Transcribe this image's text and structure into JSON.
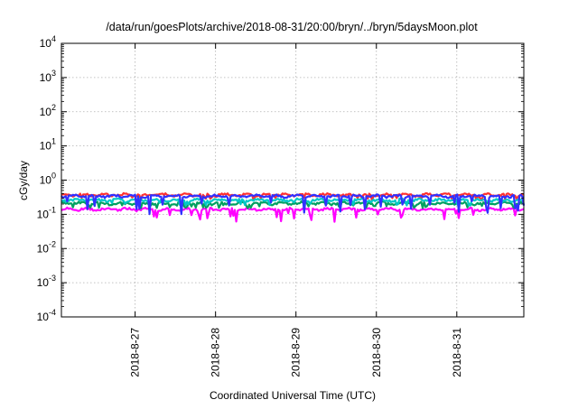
{
  "chart_data": {
    "type": "line",
    "title": "/data/run/goesPlots/archive/2018-08-31/20:00/bryn/../bryn/5daysMoon.plot",
    "xlabel": "Coordinated Universal Time (UTC)",
    "ylabel": "cGy/day",
    "yscale": "log",
    "ylim": [
      0.0001,
      10000
    ],
    "y_ticks": [
      {
        "base": "10",
        "exp": "-4"
      },
      {
        "base": "10",
        "exp": "-3"
      },
      {
        "base": "10",
        "exp": "-2"
      },
      {
        "base": "10",
        "exp": "-1"
      },
      {
        "base": "10",
        "exp": "0"
      },
      {
        "base": "10",
        "exp": "1"
      },
      {
        "base": "10",
        "exp": "2"
      },
      {
        "base": "10",
        "exp": "3"
      },
      {
        "base": "10",
        "exp": "4"
      }
    ],
    "xlim": [
      "2018-08-26 02:00",
      "2018-08-31 20:00"
    ],
    "x_ticks": [
      "2018-8-27",
      "2018-8-28",
      "2018-8-29",
      "2018-8-30",
      "2018-8-31"
    ],
    "grid": true,
    "legend": "none",
    "series": [
      {
        "color": "#ff00ff",
        "base_value": 0.14,
        "spike_min": 0.06
      },
      {
        "color": "#ff3030",
        "base_value": 0.37,
        "spike_min": 0.25
      },
      {
        "color": "#00a060",
        "base_value": 0.21,
        "spike_min": 0.15
      },
      {
        "color": "#00c8c8",
        "base_value": 0.26,
        "spike_min": 0.18
      },
      {
        "color": "#3030ff",
        "base_value": 0.34,
        "spike_min": 0.1
      }
    ]
  }
}
